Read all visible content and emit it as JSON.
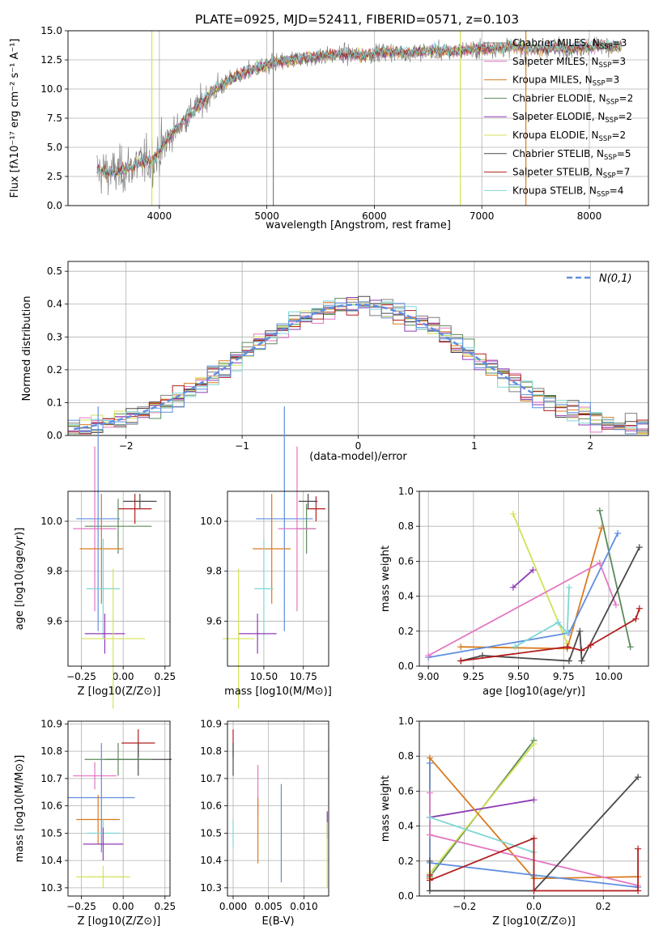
{
  "figure": {
    "title": "PLATE=0925, MJD=52411, FIBERID=0571, z=0.103"
  },
  "model_colors": {
    "Chabrier MILES": "#7f7f7f",
    "Salpeter MILES": "#e377c2",
    "Kroupa MILES": "#d97b1f",
    "Chabrier ELODIE": "#5a8a5a",
    "Salpeter ELODIE": "#8e3bb5",
    "Kroupa ELODIE": "#d4e157",
    "Chabrier STELIB": "#4a4a4a",
    "Salpeter STELIB": "#b21e1e",
    "Kroupa STELIB": "#7fd6d6",
    "extra": "#5f8ee0"
  },
  "chart_data": [
    {
      "id": "spectrum",
      "type": "line",
      "title": "PLATE=0925, MJD=52411, FIBERID=0571, z=0.103",
      "xlabel": "wavelength [Angstrom, rest frame]",
      "ylabel": "Flux [fλ10⁻¹⁷ erg cm⁻² s⁻¹ A⁻¹]",
      "xlim": [
        3150,
        8550
      ],
      "ylim": [
        0,
        15
      ],
      "xticks": [
        4000,
        5000,
        6000,
        7000,
        8000
      ],
      "yticks": [
        0.0,
        2.5,
        5.0,
        7.5,
        10.0,
        12.5,
        15.0
      ],
      "legend_position": "right",
      "series": [
        {
          "name": "Chabrier MILES, N_SSP=3",
          "label_main": "Chabrier MILES, N",
          "label_sub": "SSP",
          "label_end": "=3",
          "color": "#7f7f7f"
        },
        {
          "name": "Salpeter MILES, N_SSP=3",
          "label_main": "Salpeter MILES, N",
          "label_sub": "SSP",
          "label_end": "=3",
          "color": "#e377c2"
        },
        {
          "name": "Kroupa MILES, N_SSP=3",
          "label_main": "Kroupa MILES, N",
          "label_sub": "SSP",
          "label_end": "=3",
          "color": "#d97b1f"
        },
        {
          "name": "Chabrier ELODIE, N_SSP=2",
          "label_main": "Chabrier ELODIE, N",
          "label_sub": "SSP",
          "label_end": "=2",
          "color": "#5a8a5a"
        },
        {
          "name": "Salpeter ELODIE, N_SSP=2",
          "label_main": "Salpeter ELODIE, N",
          "label_sub": "SSP",
          "label_end": "=2",
          "color": "#8e3bb5"
        },
        {
          "name": "Kroupa ELODIE, N_SSP=2",
          "label_main": "Kroupa ELODIE, N",
          "label_sub": "SSP",
          "label_end": "=2",
          "color": "#d4e157"
        },
        {
          "name": "Chabrier STELIB, N_SSP=5",
          "label_main": "Chabrier STELIB, N",
          "label_sub": "SSP",
          "label_end": "=5",
          "color": "#4a4a4a"
        },
        {
          "name": "Salpeter STELIB, N_SSP=7",
          "label_main": "Salpeter STELIB, N",
          "label_sub": "SSP",
          "label_end": "=7",
          "color": "#b21e1e"
        },
        {
          "name": "Kroupa STELIB, N_SSP=4",
          "label_main": "Kroupa STELIB, N",
          "label_sub": "SSP",
          "label_end": "=4",
          "color": "#7fd6d6"
        }
      ],
      "continuum": {
        "x": [
          3420,
          3600,
          3800,
          3950,
          4100,
          4300,
          4500,
          4700,
          4900,
          5100,
          5300,
          5500,
          5700,
          5900,
          6100,
          6300,
          6500,
          6700,
          6900,
          7100,
          7300,
          7500,
          7700,
          7900,
          8100,
          8300
        ],
        "y": [
          3.0,
          2.8,
          3.6,
          3.9,
          6.0,
          8.0,
          9.8,
          11.0,
          11.8,
          12.3,
          12.6,
          12.8,
          13.0,
          12.9,
          13.2,
          13.1,
          13.3,
          13.2,
          13.4,
          13.5,
          13.6,
          13.4,
          13.6,
          13.5,
          13.8,
          13.6
        ]
      },
      "vlines": [
        {
          "x": 3930,
          "color": "#d4e157"
        },
        {
          "x": 5060,
          "color": "#7f7f7f"
        },
        {
          "x": 6800,
          "color": "#d4e157"
        },
        {
          "x": 7410,
          "color": "#d97b1f"
        }
      ]
    },
    {
      "id": "residuals",
      "type": "histogram",
      "xlabel": "(data-model)/error",
      "ylabel": "Normed distribution",
      "xlim": [
        -2.5,
        2.5
      ],
      "ylim": [
        0,
        0.53
      ],
      "xticks": [
        -2,
        -1,
        0,
        1,
        2
      ],
      "yticks": [
        0.0,
        0.1,
        0.2,
        0.3,
        0.4,
        0.5
      ],
      "legend_label": "N(0,1)",
      "legend_position": "upper right",
      "bin_width": 0.1,
      "gaussian": {
        "mean": 0,
        "sigma": 1,
        "xrange": [
          -2.45,
          1.55
        ],
        "color": "#5f8ee0"
      }
    },
    {
      "id": "age_vs_Z",
      "type": "errorbar",
      "xlabel": "Z [log10(Z/Z⊙)]",
      "ylabel": "age [log10(age/yr)]",
      "xlim": [
        -0.33,
        0.28
      ],
      "ylim": [
        9.42,
        10.12
      ],
      "xticks": [
        -0.25,
        0.0,
        0.25
      ],
      "xtick_labels": [
        "−0.25",
        "0.00",
        "0.25"
      ],
      "yticks": [
        9.6,
        9.8,
        10.0
      ],
      "yticklabels": [
        "9.6",
        "9.8",
        "10.0"
      ],
      "points": [
        {
          "model": "Salpeter STELIB",
          "x": 0.07,
          "xerr": 0.1,
          "y": 10.05,
          "yerr": 0.06
        },
        {
          "model": "Chabrier STELIB",
          "x": 0.1,
          "xerr": 0.1,
          "y": 10.08,
          "yerr": 0.03
        },
        {
          "model": "Chabrier ELODIE",
          "x": -0.03,
          "xerr": 0.2,
          "y": 9.98,
          "yerr": 0.11
        },
        {
          "model": "extra",
          "x": -0.15,
          "xerr": 0.13,
          "y": 10.01,
          "yerr": 0.45
        },
        {
          "model": "Salpeter MILES",
          "x": -0.17,
          "xerr": 0.13,
          "y": 9.97,
          "yerr": 0.33
        },
        {
          "model": "Kroupa MILES",
          "x": -0.13,
          "xerr": 0.13,
          "y": 9.89,
          "yerr": 0.22
        },
        {
          "model": "Kroupa STELIB",
          "x": -0.12,
          "xerr": 0.1,
          "y": 9.73,
          "yerr": 0.2
        },
        {
          "model": "Salpeter ELODIE",
          "x": -0.11,
          "xerr": 0.12,
          "y": 9.55,
          "yerr": 0.08
        },
        {
          "model": "Kroupa ELODIE",
          "x": -0.06,
          "xerr": 0.19,
          "y": 9.53,
          "yerr": 0.28
        }
      ]
    },
    {
      "id": "age_vs_mass",
      "type": "errorbar",
      "xlabel": "mass [log10(M/M⊙)]",
      "xlim": [
        10.27,
        10.91
      ],
      "ylim": [
        9.42,
        10.12
      ],
      "xticks": [
        10.5,
        10.75
      ],
      "xtick_labels": [
        "10.50",
        "10.75"
      ],
      "yticks": [
        9.6,
        9.8,
        10.0
      ],
      "yticklabels": [
        "9.6",
        "9.8",
        "10.0"
      ],
      "points": [
        {
          "model": "Salpeter STELIB",
          "x": 10.83,
          "xerr": 0.06,
          "y": 10.05,
          "yerr": 0.05
        },
        {
          "model": "Chabrier STELIB",
          "x": 10.78,
          "xerr": 0.06,
          "y": 10.08,
          "yerr": 0.03
        },
        {
          "model": "Chabrier ELODIE",
          "x": 10.77,
          "xerr": 0.06,
          "y": 9.97,
          "yerr": 0.1
        },
        {
          "model": "extra",
          "x": 10.63,
          "xerr": 0.18,
          "y": 10.01,
          "yerr": 0.45
        },
        {
          "model": "Salpeter MILES",
          "x": 10.71,
          "xerr": 0.12,
          "y": 9.97,
          "yerr": 0.33
        },
        {
          "model": "Kroupa MILES",
          "x": 10.55,
          "xerr": 0.12,
          "y": 9.89,
          "yerr": 0.22
        },
        {
          "model": "Kroupa STELIB",
          "x": 10.5,
          "xerr": 0.06,
          "y": 9.73,
          "yerr": 0.2
        },
        {
          "model": "Salpeter ELODIE",
          "x": 10.46,
          "xerr": 0.12,
          "y": 9.55,
          "yerr": 0.08
        },
        {
          "model": "Kroupa ELODIE",
          "x": 10.34,
          "xerr": 0.1,
          "y": 9.53,
          "yerr": 0.28
        }
      ]
    },
    {
      "id": "weight_vs_age",
      "type": "line",
      "xlabel": "age [log10(age/yr)]",
      "ylabel": "mass weight",
      "xlim": [
        8.95,
        10.22
      ],
      "ylim": [
        0,
        1
      ],
      "xticks": [
        9.0,
        9.25,
        9.5,
        9.75,
        10.0
      ],
      "xtick_labels": [
        "9.00",
        "9.25",
        "9.50",
        "9.75",
        "10.00"
      ],
      "yticks": [
        0.0,
        0.2,
        0.4,
        0.6,
        0.8,
        1.0
      ],
      "ytick_labels": [
        "0.0",
        "0.2",
        "0.4",
        "0.6",
        "0.8",
        "1.0"
      ],
      "series": [
        {
          "model": "Kroupa ELODIE",
          "x": [
            9.47,
            9.77
          ],
          "y": [
            0.87,
            0.13
          ]
        },
        {
          "model": "Salpeter ELODIE",
          "x": [
            9.47,
            9.58
          ],
          "y": [
            0.45,
            0.55
          ]
        },
        {
          "model": "Chabrier ELODIE",
          "x": [
            9.95,
            10.12
          ],
          "y": [
            0.89,
            0.11
          ]
        },
        {
          "model": "Kroupa MILES",
          "x": [
            9.18,
            9.77,
            9.96
          ],
          "y": [
            0.11,
            0.1,
            0.79
          ]
        },
        {
          "model": "extra",
          "x": [
            9.0,
            9.78,
            10.05
          ],
          "y": [
            0.05,
            0.19,
            0.76
          ]
        },
        {
          "model": "Salpeter MILES",
          "x": [
            9.0,
            9.95,
            10.04
          ],
          "y": [
            0.06,
            0.59,
            0.35
          ]
        },
        {
          "model": "Kroupa STELIB",
          "x": [
            9.48,
            9.72,
            9.77,
            9.78
          ],
          "y": [
            0.11,
            0.25,
            0.19,
            0.45
          ]
        },
        {
          "model": "Chabrier STELIB",
          "x": [
            9.18,
            9.3,
            9.78,
            9.84,
            9.85,
            10.17
          ],
          "y": [
            0.03,
            0.06,
            0.03,
            0.2,
            0.03,
            0.68
          ]
        },
        {
          "model": "Salpeter STELIB",
          "x": [
            9.18,
            9.77,
            9.85,
            9.9,
            10.15,
            10.17
          ],
          "y": [
            0.03,
            0.11,
            0.09,
            0.12,
            0.27,
            0.33
          ]
        }
      ]
    },
    {
      "id": "mass_vs_Z",
      "type": "errorbar",
      "xlabel": "Z [log10(Z/Z⊙)]",
      "ylabel": "mass [log10(M/M⊙)]",
      "xlim": [
        -0.33,
        0.28
      ],
      "ylim": [
        10.27,
        10.91
      ],
      "xticks": [
        -0.25,
        0.0,
        0.25
      ],
      "xtick_labels": [
        "−0.25",
        "0.00",
        "0.25"
      ],
      "yticks": [
        10.3,
        10.4,
        10.5,
        10.6,
        10.7,
        10.8,
        10.9
      ],
      "yticklabels": [
        "10.3",
        "10.4",
        "10.5",
        "10.6",
        "10.7",
        "10.8",
        "10.9"
      ],
      "points": [
        {
          "model": "Salpeter STELIB",
          "x": 0.09,
          "xerr": 0.1,
          "y": 10.83,
          "yerr": 0.05
        },
        {
          "model": "Chabrier STELIB",
          "x": 0.09,
          "xerr": 0.2,
          "y": 10.77,
          "yerr": 0.06
        },
        {
          "model": "Chabrier ELODIE",
          "x": -0.03,
          "xerr": 0.2,
          "y": 10.77,
          "yerr": 0.06
        },
        {
          "model": "Salpeter MILES",
          "x": -0.17,
          "xerr": 0.13,
          "y": 10.71,
          "yerr": 0.05
        },
        {
          "model": "extra",
          "x": -0.13,
          "xerr": 0.2,
          "y": 10.63,
          "yerr": 0.2
        },
        {
          "model": "Kroupa MILES",
          "x": -0.15,
          "xerr": 0.13,
          "y": 10.55,
          "yerr": 0.09
        },
        {
          "model": "Kroupa STELIB",
          "x": -0.12,
          "xerr": 0.1,
          "y": 10.5,
          "yerr": 0.05
        },
        {
          "model": "Salpeter ELODIE",
          "x": -0.12,
          "xerr": 0.12,
          "y": 10.46,
          "yerr": 0.06
        },
        {
          "model": "Kroupa ELODIE",
          "x": -0.12,
          "xerr": 0.16,
          "y": 10.34,
          "yerr": 0.04
        }
      ]
    },
    {
      "id": "mass_vs_EBV",
      "type": "errorbar",
      "xlabel": "E(B-V)",
      "xlim": [
        -0.0008,
        0.0135
      ],
      "ylim": [
        10.27,
        10.91
      ],
      "xticks": [
        0.0,
        0.005,
        0.01
      ],
      "xtick_labels": [
        "0.000",
        "0.005",
        "0.010"
      ],
      "yticks": [
        10.3,
        10.4,
        10.5,
        10.6,
        10.7,
        10.8,
        10.9
      ],
      "yticklabels": [
        "10.3",
        "10.4",
        "10.5",
        "10.6",
        "10.7",
        "10.8",
        "10.9"
      ],
      "points": [
        {
          "model": "Salpeter STELIB",
          "x": 0.0,
          "xerr": 0,
          "y": 10.83,
          "yerr": 0.05
        },
        {
          "model": "Chabrier STELIB",
          "x": 0.0,
          "xerr": 0,
          "y": 10.77,
          "yerr": 0.06
        },
        {
          "model": "Kroupa STELIB",
          "x": 0.0,
          "xerr": 0,
          "y": 10.5,
          "yerr": 0.05
        },
        {
          "model": "Salpeter MILES",
          "x": 0.0035,
          "xerr": 0,
          "y": 10.66,
          "yerr": 0.09
        },
        {
          "model": "Kroupa MILES",
          "x": 0.0035,
          "xerr": 0,
          "y": 10.51,
          "yerr": 0.12
        },
        {
          "model": "extra",
          "x": 0.0068,
          "xerr": 0,
          "y": 10.5,
          "yerr": 0.18
        },
        {
          "model": "Salpeter ELODIE",
          "x": 0.0133,
          "xerr": 0,
          "y": 10.53,
          "yerr": 0.05
        },
        {
          "model": "Kroupa ELODIE",
          "x": 0.0133,
          "xerr": 0,
          "y": 10.42,
          "yerr": 0.12
        }
      ]
    },
    {
      "id": "weight_vs_Z",
      "type": "line",
      "xlabel": "Z [log10(Z/Z⊙)]",
      "ylabel": "mass weight",
      "xlim": [
        -0.33,
        0.33
      ],
      "ylim": [
        0,
        1
      ],
      "xticks": [
        -0.2,
        0.0,
        0.2
      ],
      "xtick_labels": [
        "−0.2",
        "0.0",
        "0.2"
      ],
      "yticks": [
        0.0,
        0.2,
        0.4,
        0.6,
        0.8,
        1.0
      ],
      "ytick_labels": [
        "0.0",
        "0.2",
        "0.4",
        "0.6",
        "0.8",
        "1.0"
      ],
      "series": [
        {
          "model": "Chabrier ELODIE",
          "x": [
            -0.3,
            0.0
          ],
          "y": [
            0.11,
            0.89
          ]
        },
        {
          "model": "Kroupa ELODIE",
          "x": [
            -0.3,
            0.0
          ],
          "y": [
            0.13,
            0.87
          ]
        },
        {
          "model": "Salpeter ELODIE",
          "x": [
            -0.3,
            0.0
          ],
          "y": [
            0.45,
            0.55
          ]
        },
        {
          "model": "Kroupa MILES",
          "x": [
            -0.3,
            -0.3,
            0.0,
            0.3
          ],
          "y": [
            0.1,
            0.79,
            0.1,
            0.11
          ]
        },
        {
          "model": "extra",
          "x": [
            -0.3,
            -0.3,
            0.0,
            0.3
          ],
          "y": [
            0.76,
            0.19,
            0.12,
            0.05
          ]
        },
        {
          "model": "Salpeter MILES",
          "x": [
            -0.3,
            -0.3,
            0.3
          ],
          "y": [
            0.59,
            0.35,
            0.06
          ]
        },
        {
          "model": "Kroupa STELIB",
          "x": [
            -0.3,
            0.0,
            0.0
          ],
          "y": [
            0.45,
            0.25,
            0.11
          ]
        },
        {
          "model": "Chabrier STELIB",
          "x": [
            -0.3,
            -0.3,
            0.0,
            0.3
          ],
          "y": [
            0.2,
            0.03,
            0.03,
            0.68
          ]
        },
        {
          "model": "Salpeter STELIB",
          "x": [
            -0.3,
            -0.3,
            0.0,
            0.0,
            0.3,
            0.3
          ],
          "y": [
            0.12,
            0.09,
            0.33,
            0.03,
            0.03,
            0.27
          ]
        }
      ]
    }
  ]
}
